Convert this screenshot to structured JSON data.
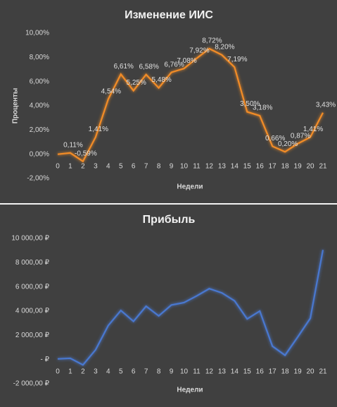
{
  "chart_data": [
    {
      "type": "line",
      "title": "Изменение ИИС",
      "ylabel": "Проценты",
      "xlabel": "Недели",
      "categories": [
        "0",
        "1",
        "2",
        "3",
        "4",
        "5",
        "6",
        "7",
        "8",
        "9",
        "10",
        "11",
        "12",
        "13",
        "14",
        "15",
        "16",
        "17",
        "18",
        "19",
        "20",
        "21"
      ],
      "series": [
        {
          "color": "#f28c28",
          "values": [
            0,
            0.11,
            -0.59,
            1.41,
            4.54,
            6.61,
            5.25,
            6.58,
            5.48,
            6.76,
            7.08,
            7.92,
            8.72,
            8.2,
            7.19,
            3.5,
            3.18,
            0.66,
            0.2,
            0.87,
            1.41,
            3.43
          ],
          "value_labels": [
            null,
            "0,11%",
            "-0,59%",
            "1,41%",
            "4,54%",
            "6,61%",
            "5,25%",
            "6,58%",
            "5,48%",
            "6,76%",
            "7,08%",
            "7,92%",
            "8,72%",
            "8,20%",
            "7,19%",
            "3,50%",
            "3,18%",
            "0,66%",
            "0,20%",
            "0,87%",
            "1,41%",
            "3,43%"
          ]
        }
      ],
      "ylim": [
        -2,
        10
      ],
      "yticks": [
        {
          "value": -2,
          "label": "-2,00%"
        },
        {
          "value": 0,
          "label": "0,00%"
        },
        {
          "value": 2,
          "label": "2,00%"
        },
        {
          "value": 4,
          "label": "4,00%"
        },
        {
          "value": 6,
          "label": "6,00%"
        },
        {
          "value": 8,
          "label": "8,00%"
        },
        {
          "value": 10,
          "label": "10,00%"
        }
      ]
    },
    {
      "type": "line",
      "title": "Прибыль",
      "xlabel": "Недели",
      "categories": [
        "0",
        "1",
        "2",
        "3",
        "4",
        "5",
        "6",
        "7",
        "8",
        "9",
        "10",
        "11",
        "12",
        "13",
        "14",
        "15",
        "16",
        "17",
        "18",
        "19",
        "20",
        "21"
      ],
      "series": [
        {
          "color": "#4a78d0",
          "values": [
            50,
            100,
            -450,
            800,
            2800,
            4050,
            3150,
            4400,
            3600,
            4500,
            4700,
            5250,
            5850,
            5500,
            4850,
            3350,
            4000,
            1100,
            350,
            1850,
            3400,
            9050
          ]
        }
      ],
      "ylim": [
        -2000,
        10000
      ],
      "yticks": [
        {
          "value": -2000,
          "label": "-2 000,00 ₽"
        },
        {
          "value": 0,
          "label": "-   ₽"
        },
        {
          "value": 2000,
          "label": "2 000,00 ₽"
        },
        {
          "value": 4000,
          "label": "4 000,00 ₽"
        },
        {
          "value": 6000,
          "label": "6 000,00 ₽"
        },
        {
          "value": 8000,
          "label": "8 000,00 ₽"
        },
        {
          "value": 10000,
          "label": "10 000,00 ₽"
        }
      ]
    }
  ]
}
